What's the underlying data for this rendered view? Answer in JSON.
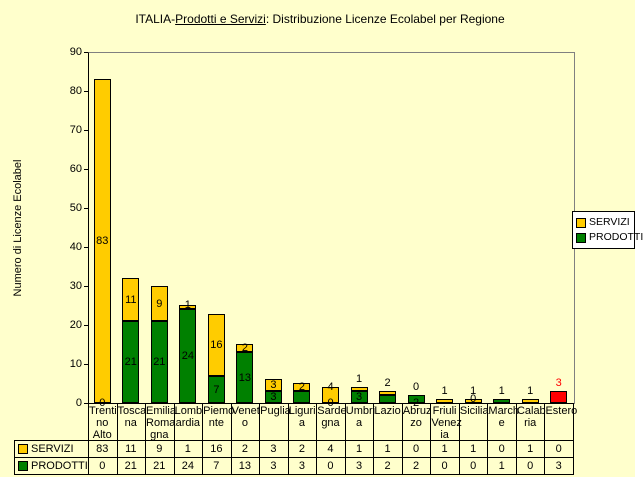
{
  "title": {
    "prefix": "ITALIA-",
    "underlined_part": "Prodotti e Servizi",
    "suffix": ": Distribuzione Licenze Ecolabel per Regione"
  },
  "y_axis": {
    "title": "Numero di Licenze Ecolabel",
    "min": 0,
    "max": 90,
    "step": 10
  },
  "legend": {
    "position": "right",
    "items": [
      {
        "label": "SERVIZI",
        "color": "#FFCC00"
      },
      {
        "label": "PRODOTTI",
        "color": "#008000"
      }
    ]
  },
  "chart_data": {
    "type": "bar",
    "stacked": true,
    "title": "ITALIA-Prodotti e Servizi: Distribuzione Licenze Ecolabel per Regione",
    "ylabel": "Numero di Licenze Ecolabel",
    "ylim": [
      0,
      90
    ],
    "grid": false,
    "data_table_shown": true,
    "categories": [
      "Trentino Alto",
      "Toscana",
      "Emilia Romagna",
      "Lombardia",
      "Piemonte",
      "Veneto",
      "Puglia",
      "Liguria",
      "Sardegna",
      "Umbria",
      "Lazio",
      "Abruzzo",
      "Friuli Venezia",
      "Sicilia",
      "Marche",
      "Calabria",
      "Estero"
    ],
    "series": [
      {
        "name": "SERVIZI",
        "color": "#FFCC00",
        "values": [
          83,
          11,
          9,
          1,
          16,
          2,
          3,
          2,
          4,
          1,
          1,
          0,
          1,
          1,
          0,
          1,
          0
        ]
      },
      {
        "name": "PRODOTTI",
        "color": "#008000",
        "values": [
          0,
          21,
          21,
          24,
          7,
          13,
          3,
          3,
          0,
          3,
          2,
          2,
          0,
          0,
          1,
          0,
          3
        ]
      }
    ],
    "point_color_overrides": [
      {
        "category": "Estero",
        "series": "PRODOTTI",
        "color": "#FF0000"
      }
    ]
  },
  "display": {
    "category_lines": [
      [
        "Trenti",
        "no",
        "Alto"
      ],
      [
        "Tosca",
        "na"
      ],
      [
        "Emilia",
        "Roma",
        "gna"
      ],
      [
        "Lomb",
        "ardia"
      ],
      [
        "Piemo",
        "nte"
      ],
      [
        "Venet",
        "o"
      ],
      [
        "Puglia"
      ],
      [
        "Liguri",
        "a"
      ],
      [
        "Sarde",
        "gna"
      ],
      [
        "Umbri",
        "a"
      ],
      [
        "Lazio"
      ],
      [
        "Abruz",
        "zo"
      ],
      [
        "Friuli",
        "Venez",
        "ia"
      ],
      [
        "Sicilia"
      ],
      [
        "March",
        "e"
      ],
      [
        "Calab",
        "ria"
      ],
      [
        "Estero"
      ]
    ],
    "bar_labels": [
      [
        {
          "text": "83",
          "pos": "sc"
        },
        {
          "text": "0",
          "pos": "bottom"
        }
      ],
      [
        {
          "text": "11",
          "pos": "sc"
        },
        {
          "text": "21",
          "pos": "pc"
        }
      ],
      [
        {
          "text": "9",
          "pos": "sc"
        },
        {
          "text": "21",
          "pos": "pc"
        }
      ],
      [
        {
          "text": "1",
          "pos": "top"
        },
        {
          "text": "24",
          "pos": "pc"
        }
      ],
      [
        {
          "text": "16",
          "pos": "sc"
        },
        {
          "text": "7",
          "pos": "pc"
        }
      ],
      [
        {
          "text": "2",
          "pos": "sc"
        },
        {
          "text": "13",
          "pos": "pc"
        }
      ],
      [
        {
          "text": "3",
          "pos": "sc"
        },
        {
          "text": "3",
          "pos": "pc"
        }
      ],
      [
        {
          "text": "2",
          "pos": "sc"
        }
      ],
      [
        {
          "text": "4",
          "pos": "top"
        },
        {
          "text": "0",
          "pos": "bottom"
        }
      ],
      [
        {
          "text": "1",
          "pos": "above"
        },
        {
          "text": "3",
          "pos": "pc"
        }
      ],
      [
        {
          "text": "2",
          "pos": "above"
        }
      ],
      [
        {
          "text": "0",
          "pos": "above"
        },
        {
          "text": "2",
          "pos": "bottom"
        }
      ],
      [
        {
          "text": "1",
          "pos": "above"
        }
      ],
      [
        {
          "text": "1",
          "pos": "above"
        },
        {
          "text": "0",
          "pos": "top"
        }
      ],
      [
        {
          "text": "1",
          "pos": "above"
        }
      ],
      [
        {
          "text": "1",
          "pos": "above"
        }
      ],
      [
        {
          "text": "3",
          "pos": "above",
          "color": "#FF0000"
        }
      ]
    ],
    "table_row_headers": [
      "SERVIZI",
      "PRODOTTI"
    ]
  },
  "colors": {
    "background": "#FFFFCC",
    "plot_border": "#808080",
    "axis": "#000000",
    "servizi": "#FFCC00",
    "prodotti": "#008000",
    "estero_override": "#FF0000",
    "legend_bg": "#FFFFFF"
  }
}
